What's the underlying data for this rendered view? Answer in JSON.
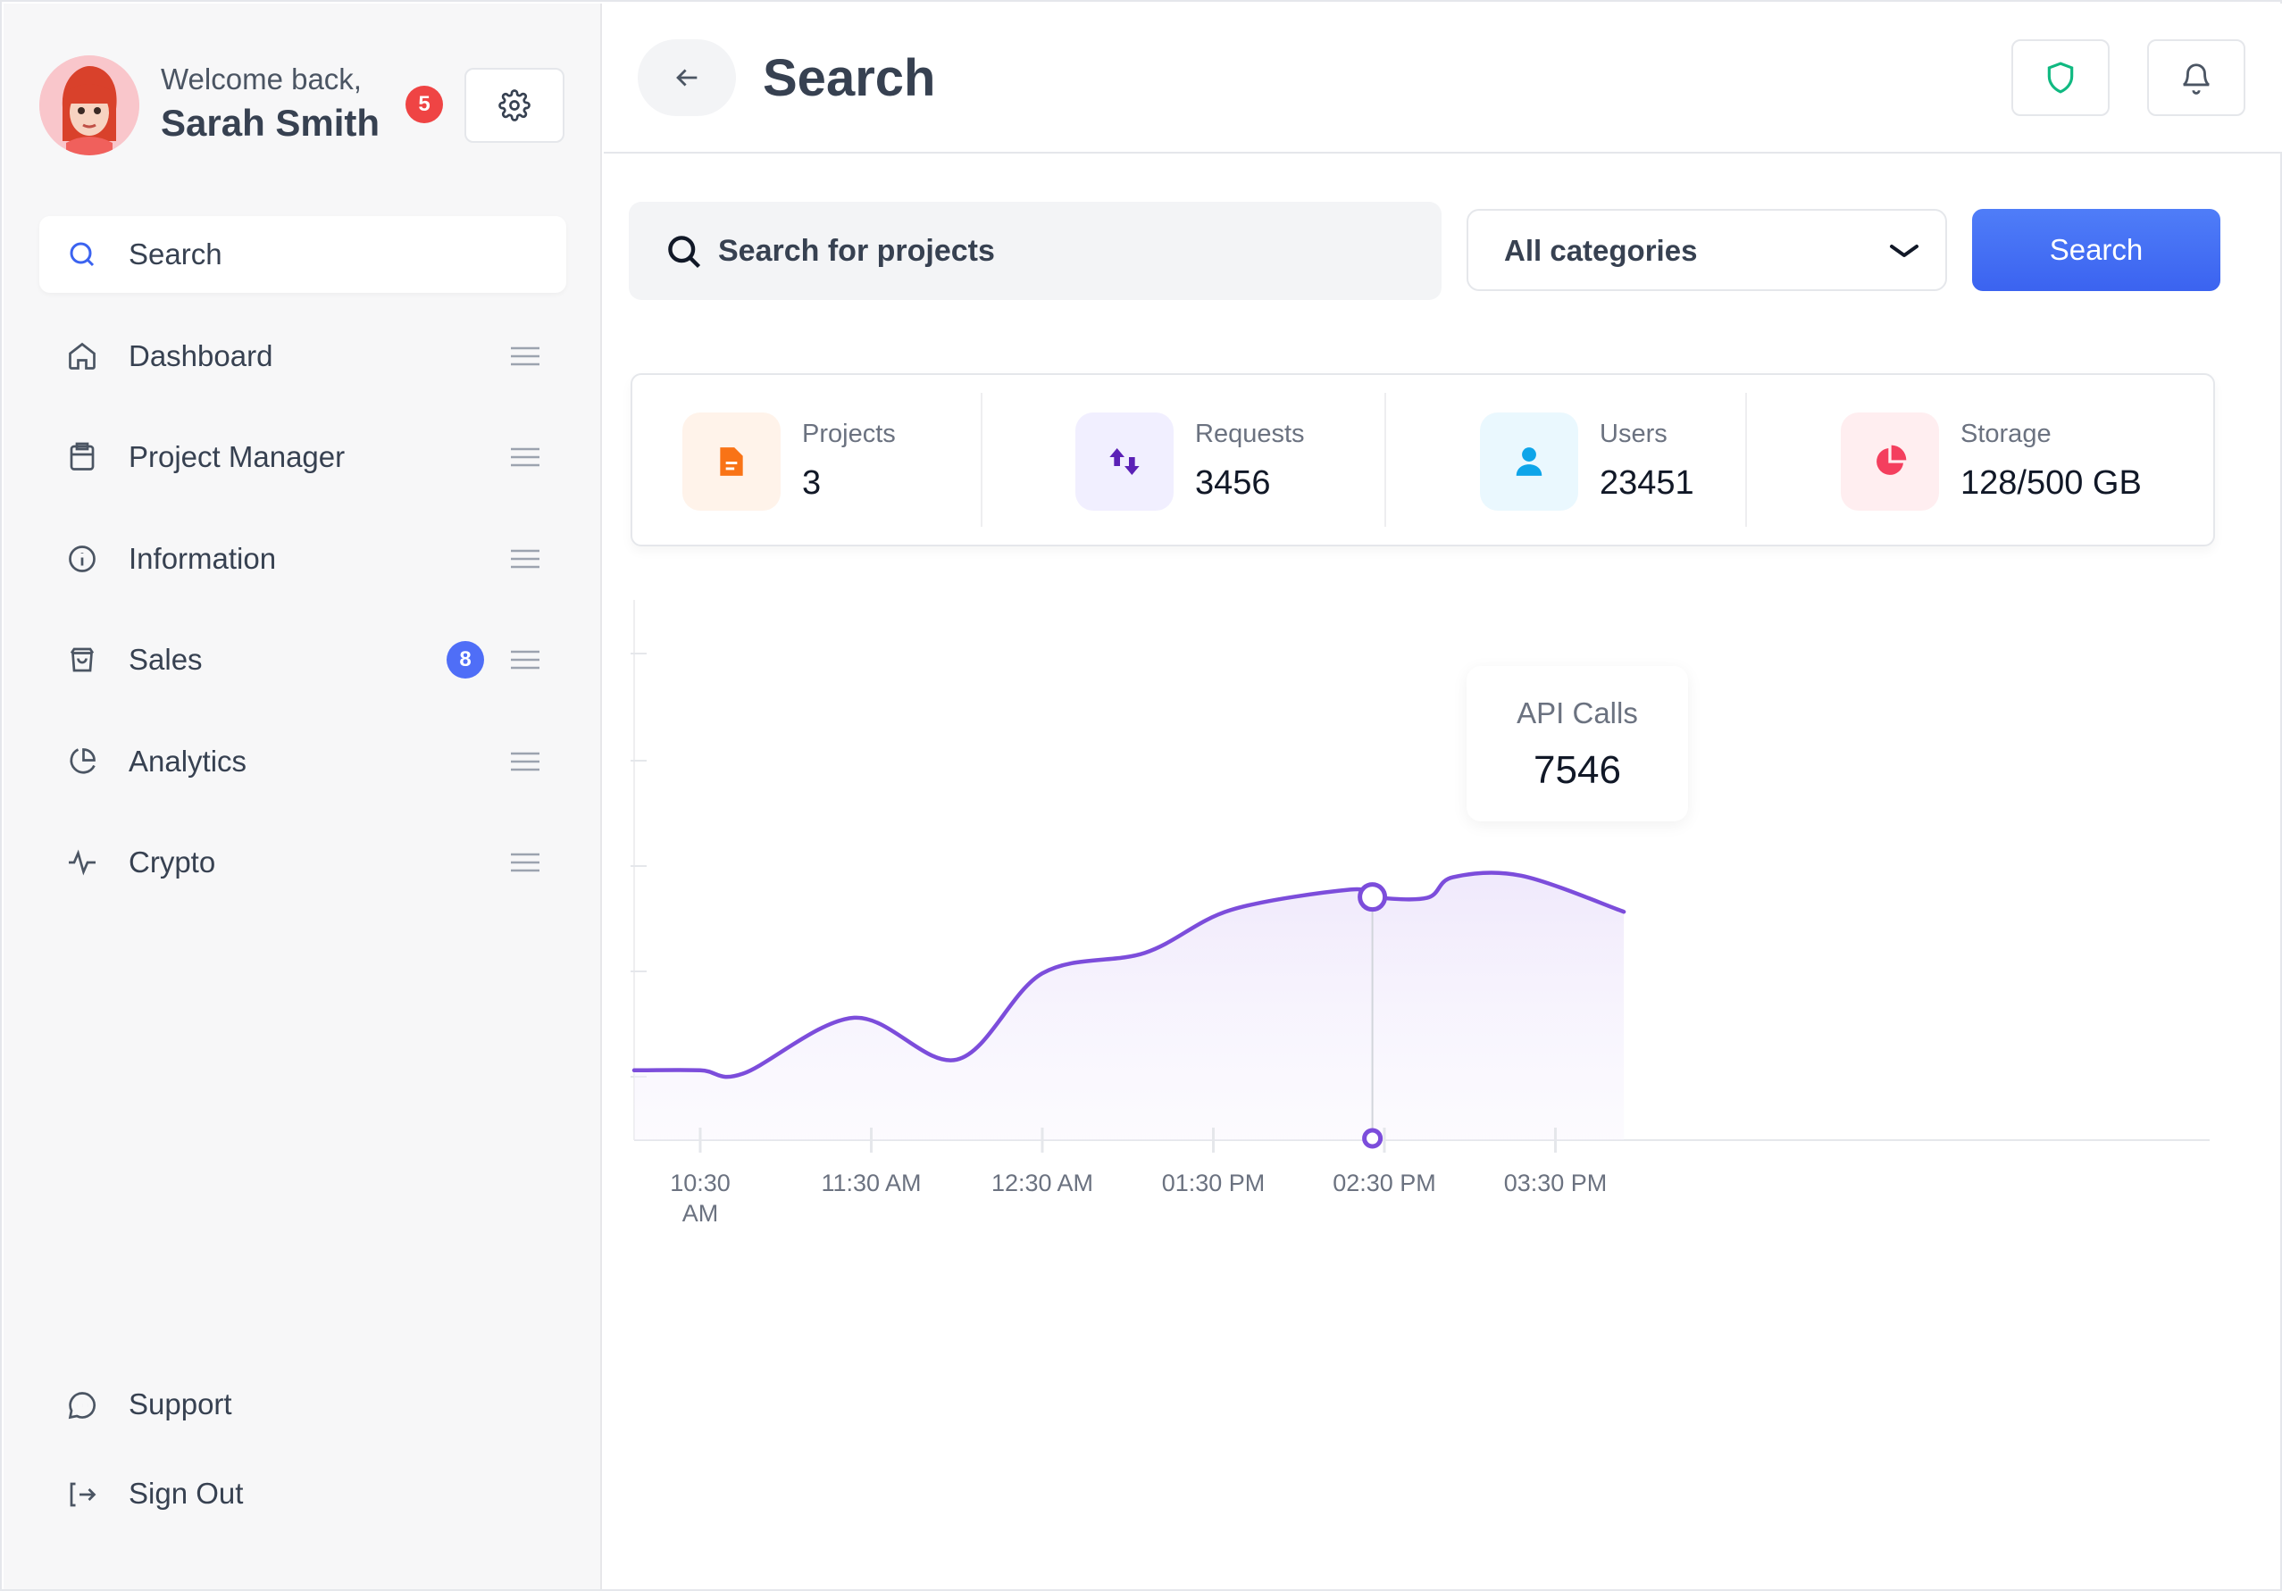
{
  "profile": {
    "welcome": "Welcome back,",
    "name": "Sarah Smith",
    "notification_count": "5"
  },
  "sidebar": {
    "items": [
      {
        "label": "Search",
        "icon": "search-icon",
        "active": true
      },
      {
        "label": "Dashboard",
        "icon": "home-icon"
      },
      {
        "label": "Project Manager",
        "icon": "clipboard-icon"
      },
      {
        "label": "Information",
        "icon": "info-icon"
      },
      {
        "label": "Sales",
        "icon": "shopping-bag-icon",
        "badge": "8"
      },
      {
        "label": "Analytics",
        "icon": "pie-chart-icon"
      },
      {
        "label": "Crypto",
        "icon": "activity-icon"
      }
    ],
    "bottom": [
      {
        "label": "Support",
        "icon": "chat-icon"
      },
      {
        "label": "Sign Out",
        "icon": "sign-out-icon"
      }
    ]
  },
  "header": {
    "title": "Search"
  },
  "search": {
    "placeholder": "Search for projects",
    "category": "All categories",
    "button": "Search"
  },
  "stats": [
    {
      "label": "Projects",
      "value": "3",
      "icon": "document-icon",
      "color": "#f97316",
      "bg": "#fff3ea"
    },
    {
      "label": "Requests",
      "value": "3456",
      "icon": "arrows-up-down-icon",
      "color": "#5b21b6",
      "bg": "#f1efff"
    },
    {
      "label": "Users",
      "value": "23451",
      "icon": "user-icon",
      "color": "#0ea5e9",
      "bg": "#eaf8fe"
    },
    {
      "label": "Storage",
      "value": "128/500 GB",
      "icon": "pie-chart-icon",
      "color": "#f43f5e",
      "bg": "#ffeef0"
    }
  ],
  "colors": {
    "accent": "#4f6ef7",
    "line": "#7c4ddb",
    "badge_red": "#ef4444",
    "shield": "#10b981"
  },
  "chart_data": {
    "type": "area",
    "x": [
      "10:30 AM",
      "11:30 AM",
      "12:30 AM",
      "01:30 PM",
      "02:30 PM",
      "03:30 PM"
    ],
    "series": [
      {
        "name": "API Calls",
        "points": [
          {
            "t": 0.0,
            "v": 8.5
          },
          {
            "t": 0.25,
            "v": 8.1
          },
          {
            "t": 0.9,
            "v": 14.9
          },
          {
            "t": 1.5,
            "v": 9.8
          },
          {
            "t": 2.0,
            "v": 20.3
          },
          {
            "t": 2.6,
            "v": 22.8
          },
          {
            "t": 3.1,
            "v": 28.0
          },
          {
            "t": 3.8,
            "v": 30.5
          },
          {
            "t": 3.93,
            "v": 29.6
          },
          {
            "t": 4.25,
            "v": 29.5
          },
          {
            "t": 4.4,
            "v": 32.0
          },
          {
            "t": 4.8,
            "v": 32.2
          },
          {
            "t": 5.4,
            "v": 27.8
          }
        ]
      }
    ],
    "tooltip": {
      "label": "API Calls",
      "value": "7546",
      "t": 3.93
    },
    "xlabels": [
      "10:30\nAM",
      "11:30 AM",
      "12:30 AM",
      "01:30 PM",
      "02:30 PM",
      "03:30 PM"
    ]
  }
}
